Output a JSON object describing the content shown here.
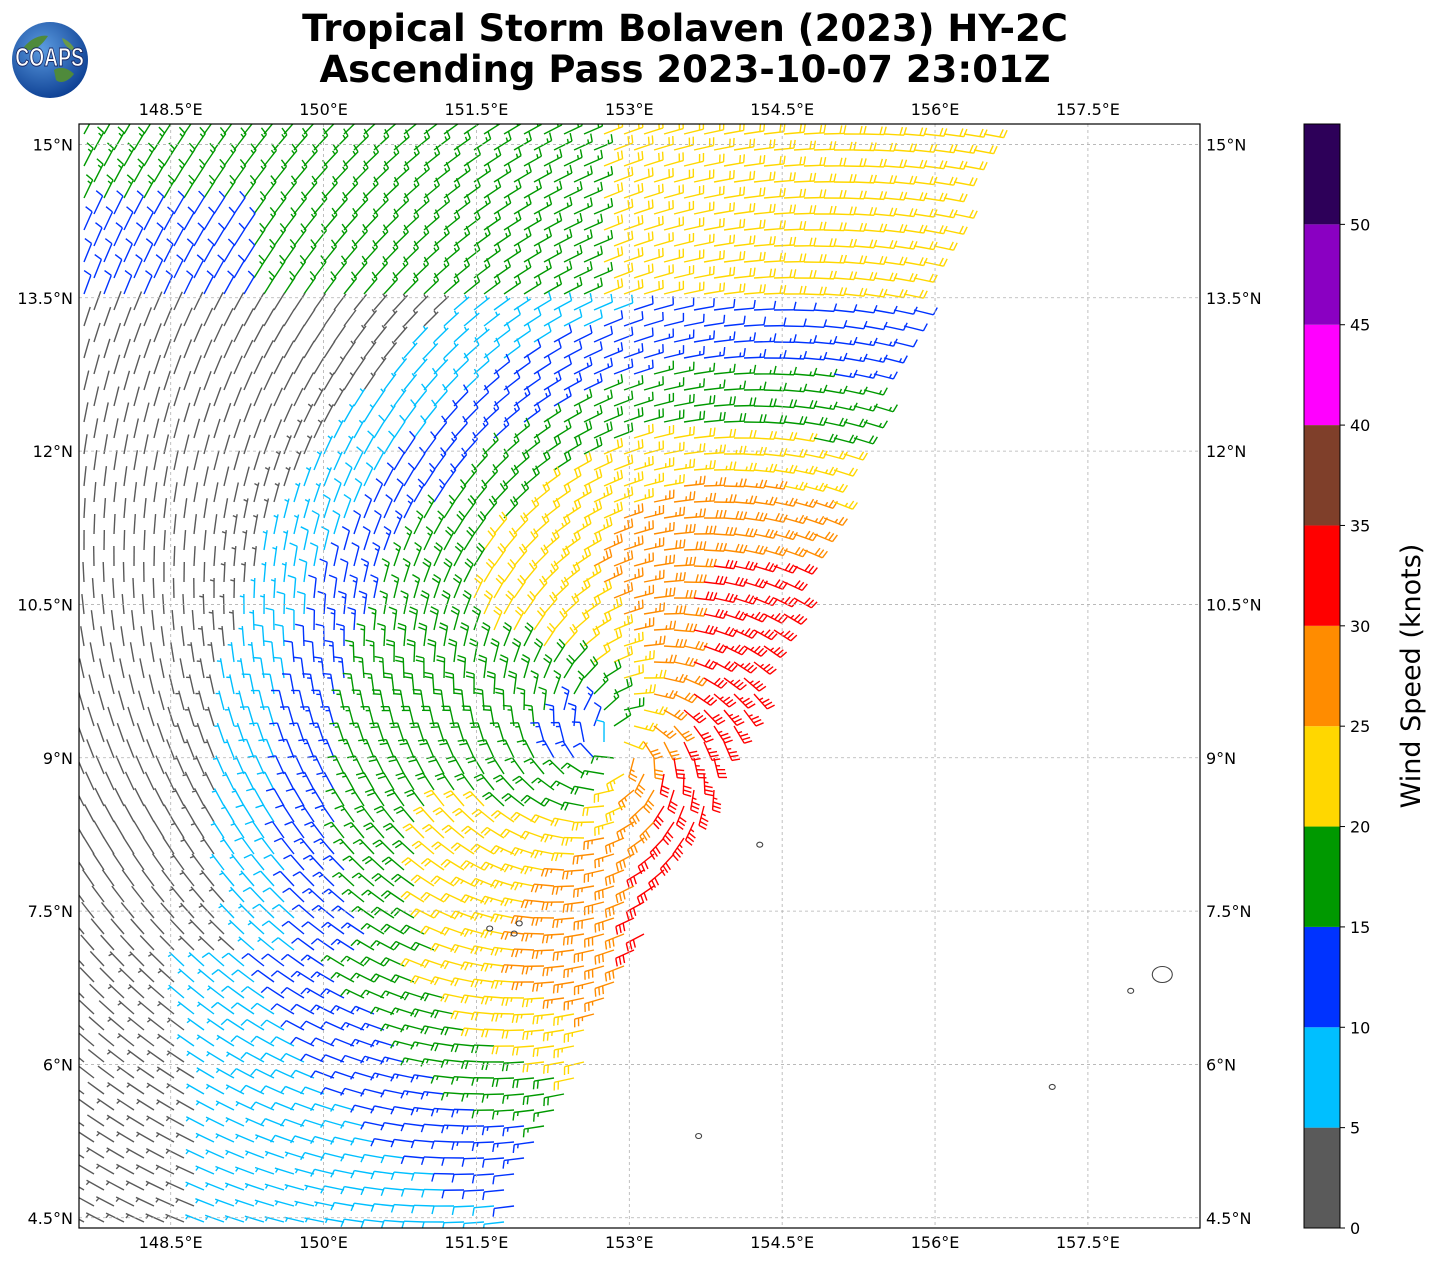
{
  "title": {
    "line1": "Tropical Storm Bolaven (2023) HY-2C",
    "line2": "Ascending Pass 2023-10-07 23:01Z"
  },
  "logo": {
    "text": "COAPS"
  },
  "chart_data": {
    "type": "wind-barb-map",
    "lon_range": [
      147.6,
      158.6
    ],
    "lat_range": [
      4.4,
      15.2
    ],
    "lon_ticks": [
      {
        "value": 148.5,
        "label": "148.5°E"
      },
      {
        "value": 150.0,
        "label": "150°E"
      },
      {
        "value": 151.5,
        "label": "151.5°E"
      },
      {
        "value": 153.0,
        "label": "153°E"
      },
      {
        "value": 154.5,
        "label": "154.5°E"
      },
      {
        "value": 156.0,
        "label": "156°E"
      },
      {
        "value": 157.5,
        "label": "157.5°E"
      }
    ],
    "lat_ticks": [
      {
        "value": 15.0,
        "label": "15°N"
      },
      {
        "value": 13.5,
        "label": "13.5°N"
      },
      {
        "value": 12.0,
        "label": "12°N"
      },
      {
        "value": 10.5,
        "label": "10.5°N"
      },
      {
        "value": 9.0,
        "label": "9°N"
      },
      {
        "value": 7.5,
        "label": "7.5°N"
      },
      {
        "value": 6.0,
        "label": "6°N"
      },
      {
        "value": 4.5,
        "label": "4.5°N"
      }
    ],
    "grid": true,
    "storm_center": {
      "lon": 152.9,
      "lat": 9.1
    },
    "colorbar": {
      "title": "Wind Speed (knots)",
      "bins": [
        {
          "from": 0,
          "to": 5,
          "color": "#5a5a5a"
        },
        {
          "from": 5,
          "to": 10,
          "color": "#00bfff"
        },
        {
          "from": 10,
          "to": 15,
          "color": "#0033ff"
        },
        {
          "from": 15,
          "to": 20,
          "color": "#009900"
        },
        {
          "from": 20,
          "to": 25,
          "color": "#ffd700"
        },
        {
          "from": 25,
          "to": 30,
          "color": "#ff8c00"
        },
        {
          "from": 30,
          "to": 35,
          "color": "#ff0000"
        },
        {
          "from": 35,
          "to": 40,
          "color": "#7f3f2a"
        },
        {
          "from": 40,
          "to": 45,
          "color": "#ff00ff"
        },
        {
          "from": 45,
          "to": 50,
          "color": "#8a00c2"
        },
        {
          "from": 50,
          "to": 55,
          "color": "#2d0059"
        }
      ],
      "tick_labels": [
        "0",
        "5",
        "10",
        "15",
        "20",
        "25",
        "30",
        "35",
        "40",
        "45",
        "50"
      ]
    },
    "islands": [
      {
        "lon": 154.28,
        "lat": 8.15
      },
      {
        "lon": 151.63,
        "lat": 7.33
      },
      {
        "lon": 151.92,
        "lat": 7.38
      },
      {
        "lon": 151.87,
        "lat": 7.28
      },
      {
        "lon": 158.23,
        "lat": 6.88
      },
      {
        "lon": 157.92,
        "lat": 6.72
      },
      {
        "lon": 157.15,
        "lat": 5.78
      },
      {
        "lon": 153.68,
        "lat": 5.3
      }
    ]
  }
}
